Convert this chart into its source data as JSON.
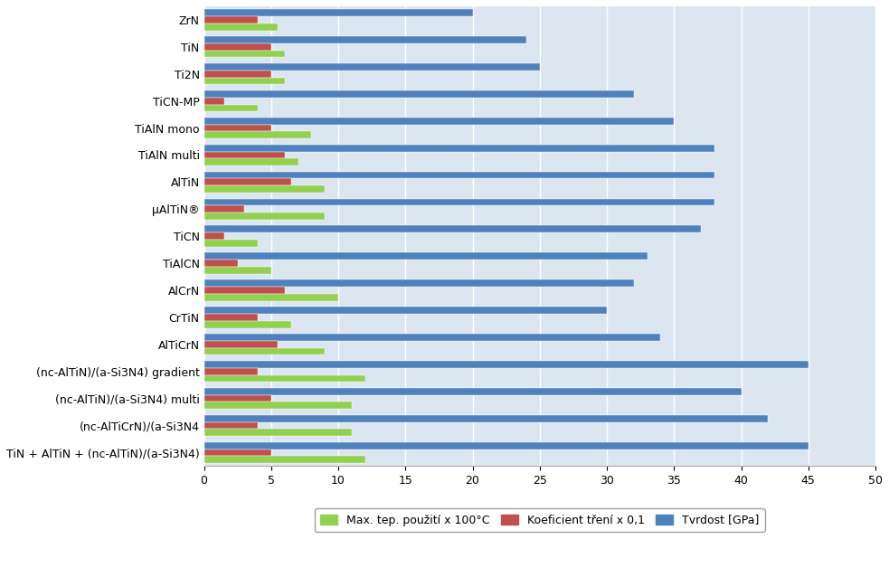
{
  "categories": [
    "ZrN",
    "TiN",
    "Ti2N",
    "TiCN-MP",
    "TiAlN mono",
    "TiAlN multi",
    "AlTiN",
    "μAlTiN®",
    "TiCN",
    "TiAlCN",
    "AlCrN",
    "CrTiN",
    "AlTiCrN",
    "(nc-AlTiN)/(a-Si3N4) gradient",
    "(nc-AlTiN)/(a-Si3N4) multi",
    "(nc-AlTiCrN)/(a-Si3N4",
    "TiN + AlTiN + (nc-AlTiN)/(a-Si3N4)"
  ],
  "max_temp": [
    5.5,
    6.0,
    6.0,
    4.0,
    8.0,
    7.0,
    9.0,
    9.0,
    4.0,
    5.0,
    10.0,
    6.5,
    9.0,
    12.0,
    11.0,
    11.0,
    12.0
  ],
  "friction": [
    4.0,
    5.0,
    5.0,
    1.5,
    5.0,
    6.0,
    6.5,
    3.0,
    1.5,
    2.5,
    6.0,
    4.0,
    5.5,
    4.0,
    5.0,
    4.0,
    5.0
  ],
  "hardness": [
    20.0,
    24.0,
    25.0,
    32.0,
    35.0,
    38.0,
    38.0,
    38.0,
    37.0,
    33.0,
    32.0,
    30.0,
    34.0,
    45.0,
    40.0,
    42.0,
    45.0
  ],
  "color_temp": "#92d050",
  "color_friction": "#c0504d",
  "color_hardness": "#4f81bd",
  "xlim": [
    0,
    50
  ],
  "xticks": [
    0,
    5,
    10,
    15,
    20,
    25,
    30,
    35,
    40,
    45,
    50
  ],
  "legend_labels": [
    "Max. tep. použití x 100°C",
    "Koeficient tření x 0,1",
    "Tvrdost [GPa]"
  ],
  "bar_height": 0.26,
  "figsize": [
    9.83,
    6.38
  ],
  "dpi": 100,
  "bg_color": "#dce6f1",
  "label_fontsize": 9,
  "tick_fontsize": 9
}
